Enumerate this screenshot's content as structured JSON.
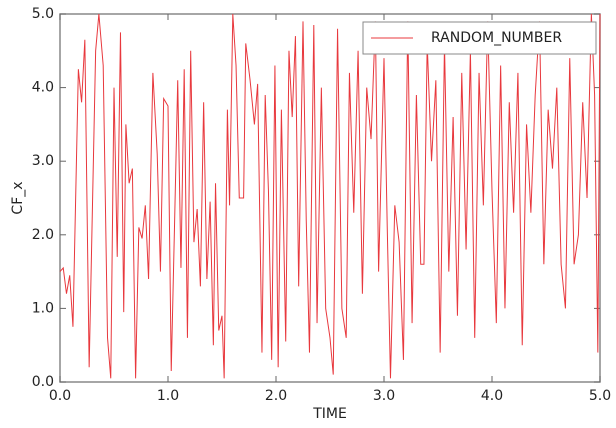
{
  "chart_data": {
    "type": "line",
    "xlabel": "TIME",
    "ylabel": "CF_x",
    "xlim": [
      0,
      5
    ],
    "ylim": [
      0,
      5
    ],
    "xticks": [
      {
        "value": 0,
        "label": "0.0"
      },
      {
        "value": 1,
        "label": "1.0"
      },
      {
        "value": 2,
        "label": "2.0"
      },
      {
        "value": 3,
        "label": "3.0"
      },
      {
        "value": 4,
        "label": "4.0"
      },
      {
        "value": 5,
        "label": "5.0"
      }
    ],
    "yticks": [
      {
        "value": 0,
        "label": "0.0"
      },
      {
        "value": 1,
        "label": "1.0"
      },
      {
        "value": 2,
        "label": "2.0"
      },
      {
        "value": 3,
        "label": "3.0"
      },
      {
        "value": 4,
        "label": "4.0"
      },
      {
        "value": 5,
        "label": "5.0"
      }
    ],
    "legend": "upper right",
    "x": [
      0,
      0.03,
      0.06,
      0.09,
      0.12,
      0.17,
      0.2,
      0.23,
      0.27,
      0.33,
      0.36,
      0.4,
      0.44,
      0.47,
      0.5,
      0.53,
      0.56,
      0.59,
      0.61,
      0.64,
      0.67,
      0.7,
      0.73,
      0.76,
      0.79,
      0.82,
      0.86,
      0.9,
      0.93,
      0.96,
      1.0,
      1.03,
      1.06,
      1.09,
      1.12,
      1.15,
      1.18,
      1.21,
      1.24,
      1.27,
      1.3,
      1.33,
      1.36,
      1.39,
      1.42,
      1.44,
      1.47,
      1.5,
      1.52,
      1.55,
      1.57,
      1.6,
      1.63,
      1.66,
      1.7,
      1.72,
      1.76,
      1.8,
      1.83,
      1.87,
      1.9,
      1.93,
      1.96,
      1.99,
      2.02,
      2.05,
      2.09,
      2.12,
      2.15,
      2.18,
      2.21,
      2.25,
      2.28,
      2.31,
      2.35,
      2.38,
      2.42,
      2.46,
      2.5,
      2.53,
      2.57,
      2.61,
      2.65,
      2.68,
      2.72,
      2.76,
      2.8,
      2.84,
      2.88,
      2.92,
      2.95,
      3.0,
      3.03,
      3.06,
      3.1,
      3.14,
      3.18,
      3.22,
      3.26,
      3.3,
      3.34,
      3.37,
      3.4,
      3.44,
      3.48,
      3.52,
      3.56,
      3.6,
      3.64,
      3.68,
      3.72,
      3.76,
      3.8,
      3.84,
      3.88,
      3.92,
      3.96,
      4.0,
      4.04,
      4.08,
      4.12,
      4.16,
      4.2,
      4.24,
      4.28,
      4.32,
      4.36,
      4.4,
      4.44,
      4.48,
      4.52,
      4.56,
      4.6,
      4.64,
      4.68,
      4.72,
      4.76,
      4.8,
      4.84,
      4.88,
      4.92,
      4.95,
      4.98,
      5.0
    ],
    "series": [
      {
        "name": "RANDOM_NUMBER",
        "color": "#e8383d",
        "values": [
          1.5,
          1.55,
          1.2,
          1.45,
          0.75,
          4.25,
          3.8,
          4.65,
          0.2,
          4.5,
          5.0,
          4.3,
          0.6,
          0.05,
          4.0,
          1.7,
          4.75,
          0.95,
          3.5,
          2.7,
          2.9,
          0.05,
          2.1,
          1.95,
          2.4,
          1.4,
          4.2,
          3.1,
          1.5,
          3.85,
          3.75,
          0.15,
          2.1,
          4.1,
          1.55,
          4.25,
          0.6,
          4.5,
          1.9,
          2.35,
          1.3,
          3.8,
          1.4,
          2.45,
          0.5,
          2.7,
          0.7,
          0.9,
          0.05,
          3.7,
          2.4,
          5.0,
          4.3,
          2.5,
          2.5,
          4.6,
          4.1,
          3.5,
          4.05,
          0.4,
          3.9,
          2.6,
          0.3,
          4.3,
          0.2,
          3.7,
          0.55,
          4.5,
          3.6,
          4.7,
          1.3,
          4.9,
          2.2,
          0.4,
          4.85,
          0.8,
          4.0,
          1.0,
          0.6,
          0.1,
          4.8,
          1.0,
          0.6,
          4.2,
          2.3,
          4.5,
          1.2,
          4.0,
          3.3,
          4.9,
          1.5,
          4.4,
          2.1,
          0.05,
          2.4,
          1.9,
          0.3,
          4.9,
          0.8,
          3.9,
          1.6,
          1.6,
          4.6,
          3.0,
          4.1,
          0.4,
          4.6,
          1.5,
          3.6,
          0.9,
          4.2,
          1.8,
          4.5,
          0.6,
          4.2,
          2.4,
          4.9,
          2.6,
          0.8,
          4.3,
          1.0,
          3.8,
          2.3,
          4.2,
          0.5,
          3.5,
          2.3,
          3.9,
          4.9,
          1.6,
          3.7,
          2.9,
          4.0,
          1.6,
          1.0,
          4.4,
          1.6,
          2.0,
          3.8,
          2.5,
          5.0,
          3.9,
          0.4,
          5.0
        ]
      }
    ]
  }
}
